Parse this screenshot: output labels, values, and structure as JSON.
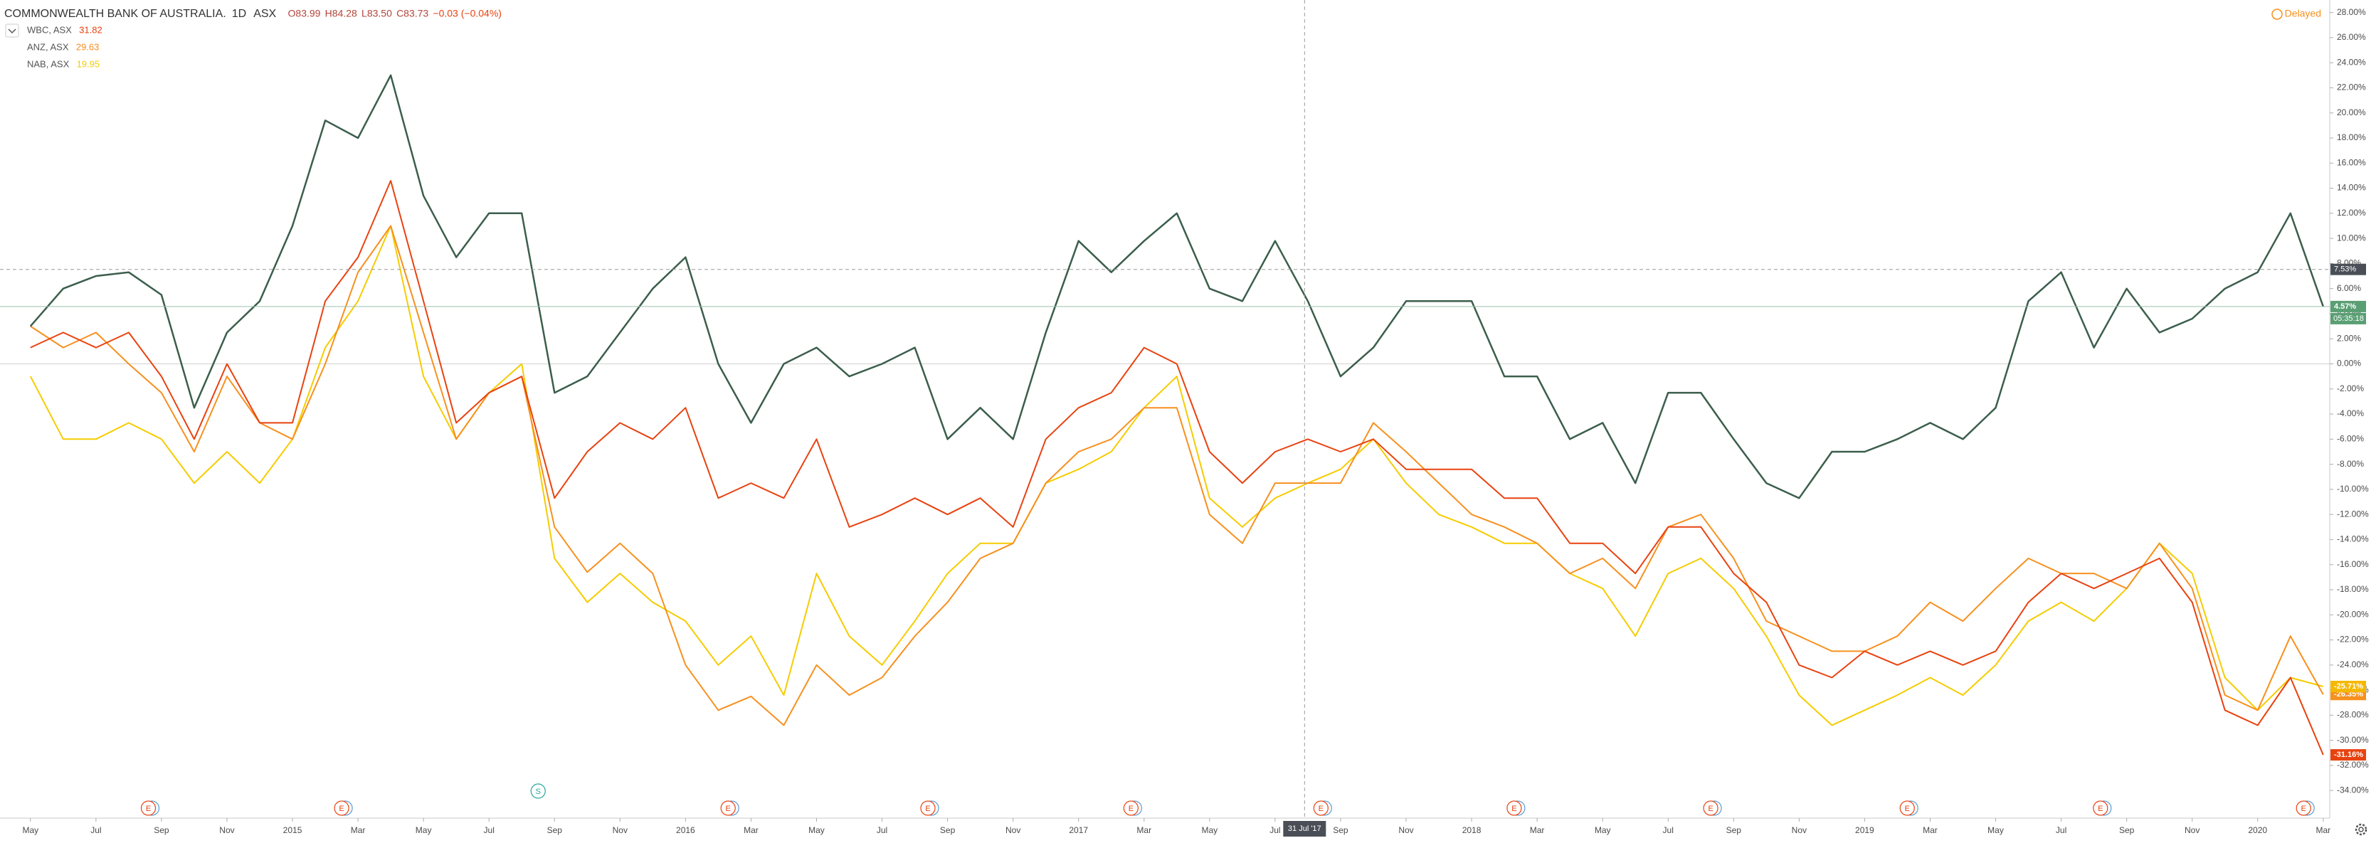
{
  "chart_data": {
    "type": "line",
    "title": "COMMONWEALTH BANK OF AUSTRALIA.",
    "interval": "1D",
    "exchange": "ASX",
    "ohlc": [
      "O83.99",
      "H84.28",
      "L83.50",
      "C83.73",
      "−0.03 (−0.04%)"
    ],
    "status": "Delayed",
    "countdown": "05:35:18",
    "crosshair": {
      "x": 38.9,
      "y": 7.53,
      "x_label": "31 Jul '17",
      "y_label": "7.53%"
    },
    "x": [
      0,
      1,
      2,
      3,
      4,
      5,
      6,
      7,
      8,
      9,
      10,
      11,
      12,
      13,
      14,
      15,
      16,
      17,
      18,
      19,
      20,
      21,
      22,
      23,
      24,
      25,
      26,
      27,
      28,
      29,
      30,
      31,
      32,
      33,
      34,
      35,
      36,
      37,
      38,
      39,
      40,
      41,
      42,
      43,
      44,
      45,
      46,
      47,
      48,
      49,
      50,
      51,
      52,
      53,
      54,
      55,
      56,
      57,
      58,
      59,
      60,
      61,
      62,
      63,
      64,
      65,
      66,
      67,
      68,
      69,
      70
    ],
    "series": [
      {
        "name": "COMMONWEALTH BANK OF AUSTRALIA.",
        "color": "#3b5e4c",
        "last_label": "4.57%",
        "label_color": "#5a9f74",
        "values": [
          3,
          6,
          7,
          7.3,
          5.5,
          -3.5,
          2.5,
          5,
          11,
          19.4,
          18,
          23,
          13.4,
          8.5,
          12,
          12,
          -2.3,
          -1,
          2.5,
          6,
          8.5,
          0,
          -4.7,
          0,
          1.3,
          -1,
          0,
          1.3,
          -6,
          -3.5,
          -6,
          2.5,
          9.8,
          7.3,
          9.8,
          12,
          6,
          5,
          9.8,
          5,
          -1,
          1.3,
          5,
          5,
          5,
          -1,
          -1,
          -6,
          -4.7,
          -9.5,
          -2.3,
          -2.3,
          -6,
          -9.5,
          -10.7,
          -7,
          -7,
          -6,
          -4.7,
          -6,
          -3.5,
          5,
          7.3,
          1.3,
          6,
          2.5,
          3.6,
          6,
          7.3,
          12,
          4.57
        ]
      },
      {
        "name": "WBC, ASX",
        "price": 31.82,
        "color": "#e8420f",
        "last_label": "-31.16%",
        "label_color": "#e8420f",
        "values": [
          1.3,
          2.5,
          1.3,
          2.5,
          -1,
          -6,
          0,
          -4.7,
          -4.7,
          5,
          8.5,
          14.6,
          5,
          -4.7,
          -2.3,
          -1,
          -10.7,
          -7,
          -4.7,
          -6,
          -3.5,
          -10.7,
          -9.5,
          -10.7,
          -6,
          -13,
          -12,
          -10.7,
          -12,
          -10.7,
          -13,
          -6,
          -3.5,
          -2.3,
          1.3,
          0,
          -7,
          -9.5,
          -7,
          -6,
          -7,
          -6,
          -8.4,
          -8.4,
          -8.4,
          -10.7,
          -10.7,
          -14.3,
          -14.3,
          -16.7,
          -13,
          -13,
          -16.7,
          -19,
          -24,
          -25,
          -22.9,
          -24,
          -22.9,
          -24,
          -22.9,
          -19,
          -16.7,
          -17.9,
          -16.7,
          -15.5,
          -19,
          -27.6,
          -28.8,
          -25,
          -31.16
        ]
      },
      {
        "name": "ANZ, ASX",
        "price": 29.63,
        "color": "#f7901e",
        "last_label": "-26.35%",
        "label_color": "#f7901e",
        "values": [
          3,
          1.3,
          2.5,
          0,
          -2.3,
          -7,
          -1,
          -4.7,
          -6,
          0,
          7.3,
          11,
          2.5,
          -6,
          -2.3,
          -1,
          -13,
          -16.6,
          -14.3,
          -16.7,
          -24,
          -27.6,
          -26.5,
          -28.8,
          -24,
          -26.4,
          -25,
          -21.7,
          -19,
          -15.5,
          -14.3,
          -9.5,
          -7,
          -6,
          -3.5,
          -3.5,
          -12,
          -14.3,
          -9.5,
          -9.5,
          -9.5,
          -4.7,
          -7,
          -9.5,
          -12,
          -13,
          -14.3,
          -16.7,
          -15.5,
          -17.9,
          -13,
          -12,
          -15.5,
          -20.5,
          -21.7,
          -22.9,
          -22.9,
          -21.7,
          -19,
          -20.5,
          -17.9,
          -15.5,
          -16.7,
          -16.7,
          -17.9,
          -14.3,
          -17.9,
          -26.4,
          -27.6,
          -21.7,
          -26.35
        ]
      },
      {
        "name": "NAB, ASX",
        "price": 19.95,
        "color": "#f5cc00",
        "last_label": "-25.71%",
        "label_color": "#f5b800",
        "values": [
          -1,
          -6,
          -6,
          -4.7,
          -6,
          -9.5,
          -7,
          -9.5,
          -6,
          1.3,
          5,
          11,
          -1,
          -6,
          -2.3,
          0,
          -15.5,
          -19,
          -16.7,
          -19,
          -20.5,
          -24,
          -21.7,
          -26.4,
          -16.7,
          -21.7,
          -24,
          -20.5,
          -16.7,
          -14.3,
          -14.3,
          -9.5,
          -8.4,
          -7,
          -3.5,
          -1,
          -10.7,
          -13,
          -10.7,
          -9.5,
          -8.4,
          -6,
          -9.5,
          -12,
          -13,
          -14.3,
          -14.3,
          -16.7,
          -17.9,
          -21.7,
          -16.7,
          -15.5,
          -17.9,
          -21.7,
          -26.4,
          -28.8,
          -27.6,
          -26.4,
          -25,
          -26.4,
          -24,
          -20.5,
          -19,
          -20.5,
          -17.9,
          -14.3,
          -16.7,
          -25,
          -27.6,
          -25,
          -25.71
        ]
      }
    ],
    "events": [
      {
        "x": 3.6,
        "label": "E"
      },
      {
        "x": 9.5,
        "label": "E"
      },
      {
        "x": 15.5,
        "label": "S"
      },
      {
        "x": 21.3,
        "label": "E"
      },
      {
        "x": 27.4,
        "label": "E"
      },
      {
        "x": 33.6,
        "label": "E"
      },
      {
        "x": 39.4,
        "label": "E"
      },
      {
        "x": 45.3,
        "label": "E"
      },
      {
        "x": 51.3,
        "label": "E"
      },
      {
        "x": 57.3,
        "label": "E"
      },
      {
        "x": 63.2,
        "label": "E"
      },
      {
        "x": 69.4,
        "label": "E"
      }
    ],
    "xlim": [
      -0.93,
      70.2
    ],
    "xticks": [
      {
        "value": 0,
        "label": "May"
      },
      {
        "value": 2,
        "label": "Jul"
      },
      {
        "value": 4,
        "label": "Sep"
      },
      {
        "value": 6,
        "label": "Nov"
      },
      {
        "value": 8,
        "label": "2015"
      },
      {
        "value": 10,
        "label": "Mar"
      },
      {
        "value": 12,
        "label": "May"
      },
      {
        "value": 14,
        "label": "Jul"
      },
      {
        "value": 16,
        "label": "Sep"
      },
      {
        "value": 18,
        "label": "Nov"
      },
      {
        "value": 20,
        "label": "2016"
      },
      {
        "value": 22,
        "label": "Mar"
      },
      {
        "value": 24,
        "label": "May"
      },
      {
        "value": 26,
        "label": "Jul"
      },
      {
        "value": 28,
        "label": "Sep"
      },
      {
        "value": 30,
        "label": "Nov"
      },
      {
        "value": 32,
        "label": "2017"
      },
      {
        "value": 34,
        "label": "Mar"
      },
      {
        "value": 36,
        "label": "May"
      },
      {
        "value": 38,
        "label": "Jul"
      },
      {
        "value": 40,
        "label": "Sep"
      },
      {
        "value": 42,
        "label": "Nov"
      },
      {
        "value": 44,
        "label": "2018"
      },
      {
        "value": 46,
        "label": "Mar"
      },
      {
        "value": 48,
        "label": "May"
      },
      {
        "value": 50,
        "label": "Jul"
      },
      {
        "value": 52,
        "label": "Sep"
      },
      {
        "value": 54,
        "label": "Nov"
      },
      {
        "value": 56,
        "label": "2019"
      },
      {
        "value": 58,
        "label": "Mar"
      },
      {
        "value": 60,
        "label": "May"
      },
      {
        "value": 62,
        "label": "Jul"
      },
      {
        "value": 64,
        "label": "Sep"
      },
      {
        "value": 66,
        "label": "Nov"
      },
      {
        "value": 68,
        "label": "2020"
      },
      {
        "value": 70,
        "label": "Mar"
      }
    ],
    "ylim": [
      -36.2,
      29
    ],
    "yticks": [
      {
        "value": 28,
        "label": "28.00%"
      },
      {
        "value": 26,
        "label": "26.00%"
      },
      {
        "value": 24,
        "label": "24.00%"
      },
      {
        "value": 22,
        "label": "22.00%"
      },
      {
        "value": 20,
        "label": "20.00%"
      },
      {
        "value": 18,
        "label": "18.00%"
      },
      {
        "value": 16,
        "label": "16.00%"
      },
      {
        "value": 14,
        "label": "14.00%"
      },
      {
        "value": 12,
        "label": "12.00%"
      },
      {
        "value": 10,
        "label": "10.00%"
      },
      {
        "value": 8,
        "label": "8.00%"
      },
      {
        "value": 6,
        "label": "6.00%"
      },
      {
        "value": 4,
        "label": "4.00%"
      },
      {
        "value": 2,
        "label": "2.00%"
      },
      {
        "value": 0,
        "label": "0.00%"
      },
      {
        "value": -2,
        "label": "-2.00%"
      },
      {
        "value": -4,
        "label": "-4.00%"
      },
      {
        "value": -6,
        "label": "-6.00%"
      },
      {
        "value": -8,
        "label": "-8.00%"
      },
      {
        "value": -10,
        "label": "-10.00%"
      },
      {
        "value": -12,
        "label": "-12.00%"
      },
      {
        "value": -14,
        "label": "-14.00%"
      },
      {
        "value": -16,
        "label": "-16.00%"
      },
      {
        "value": -18,
        "label": "-18.00%"
      },
      {
        "value": -20,
        "label": "-20.00%"
      },
      {
        "value": -22,
        "label": "-22.00%"
      },
      {
        "value": -24,
        "label": "-24.00%"
      },
      {
        "value": -26,
        "label": "-26.00%"
      },
      {
        "value": -28,
        "label": "-28.00%"
      },
      {
        "value": -30,
        "label": "-30.00%"
      },
      {
        "value": -32,
        "label": "-32.00%"
      },
      {
        "value": -34,
        "label": "-34.00%"
      }
    ],
    "grid": false
  }
}
